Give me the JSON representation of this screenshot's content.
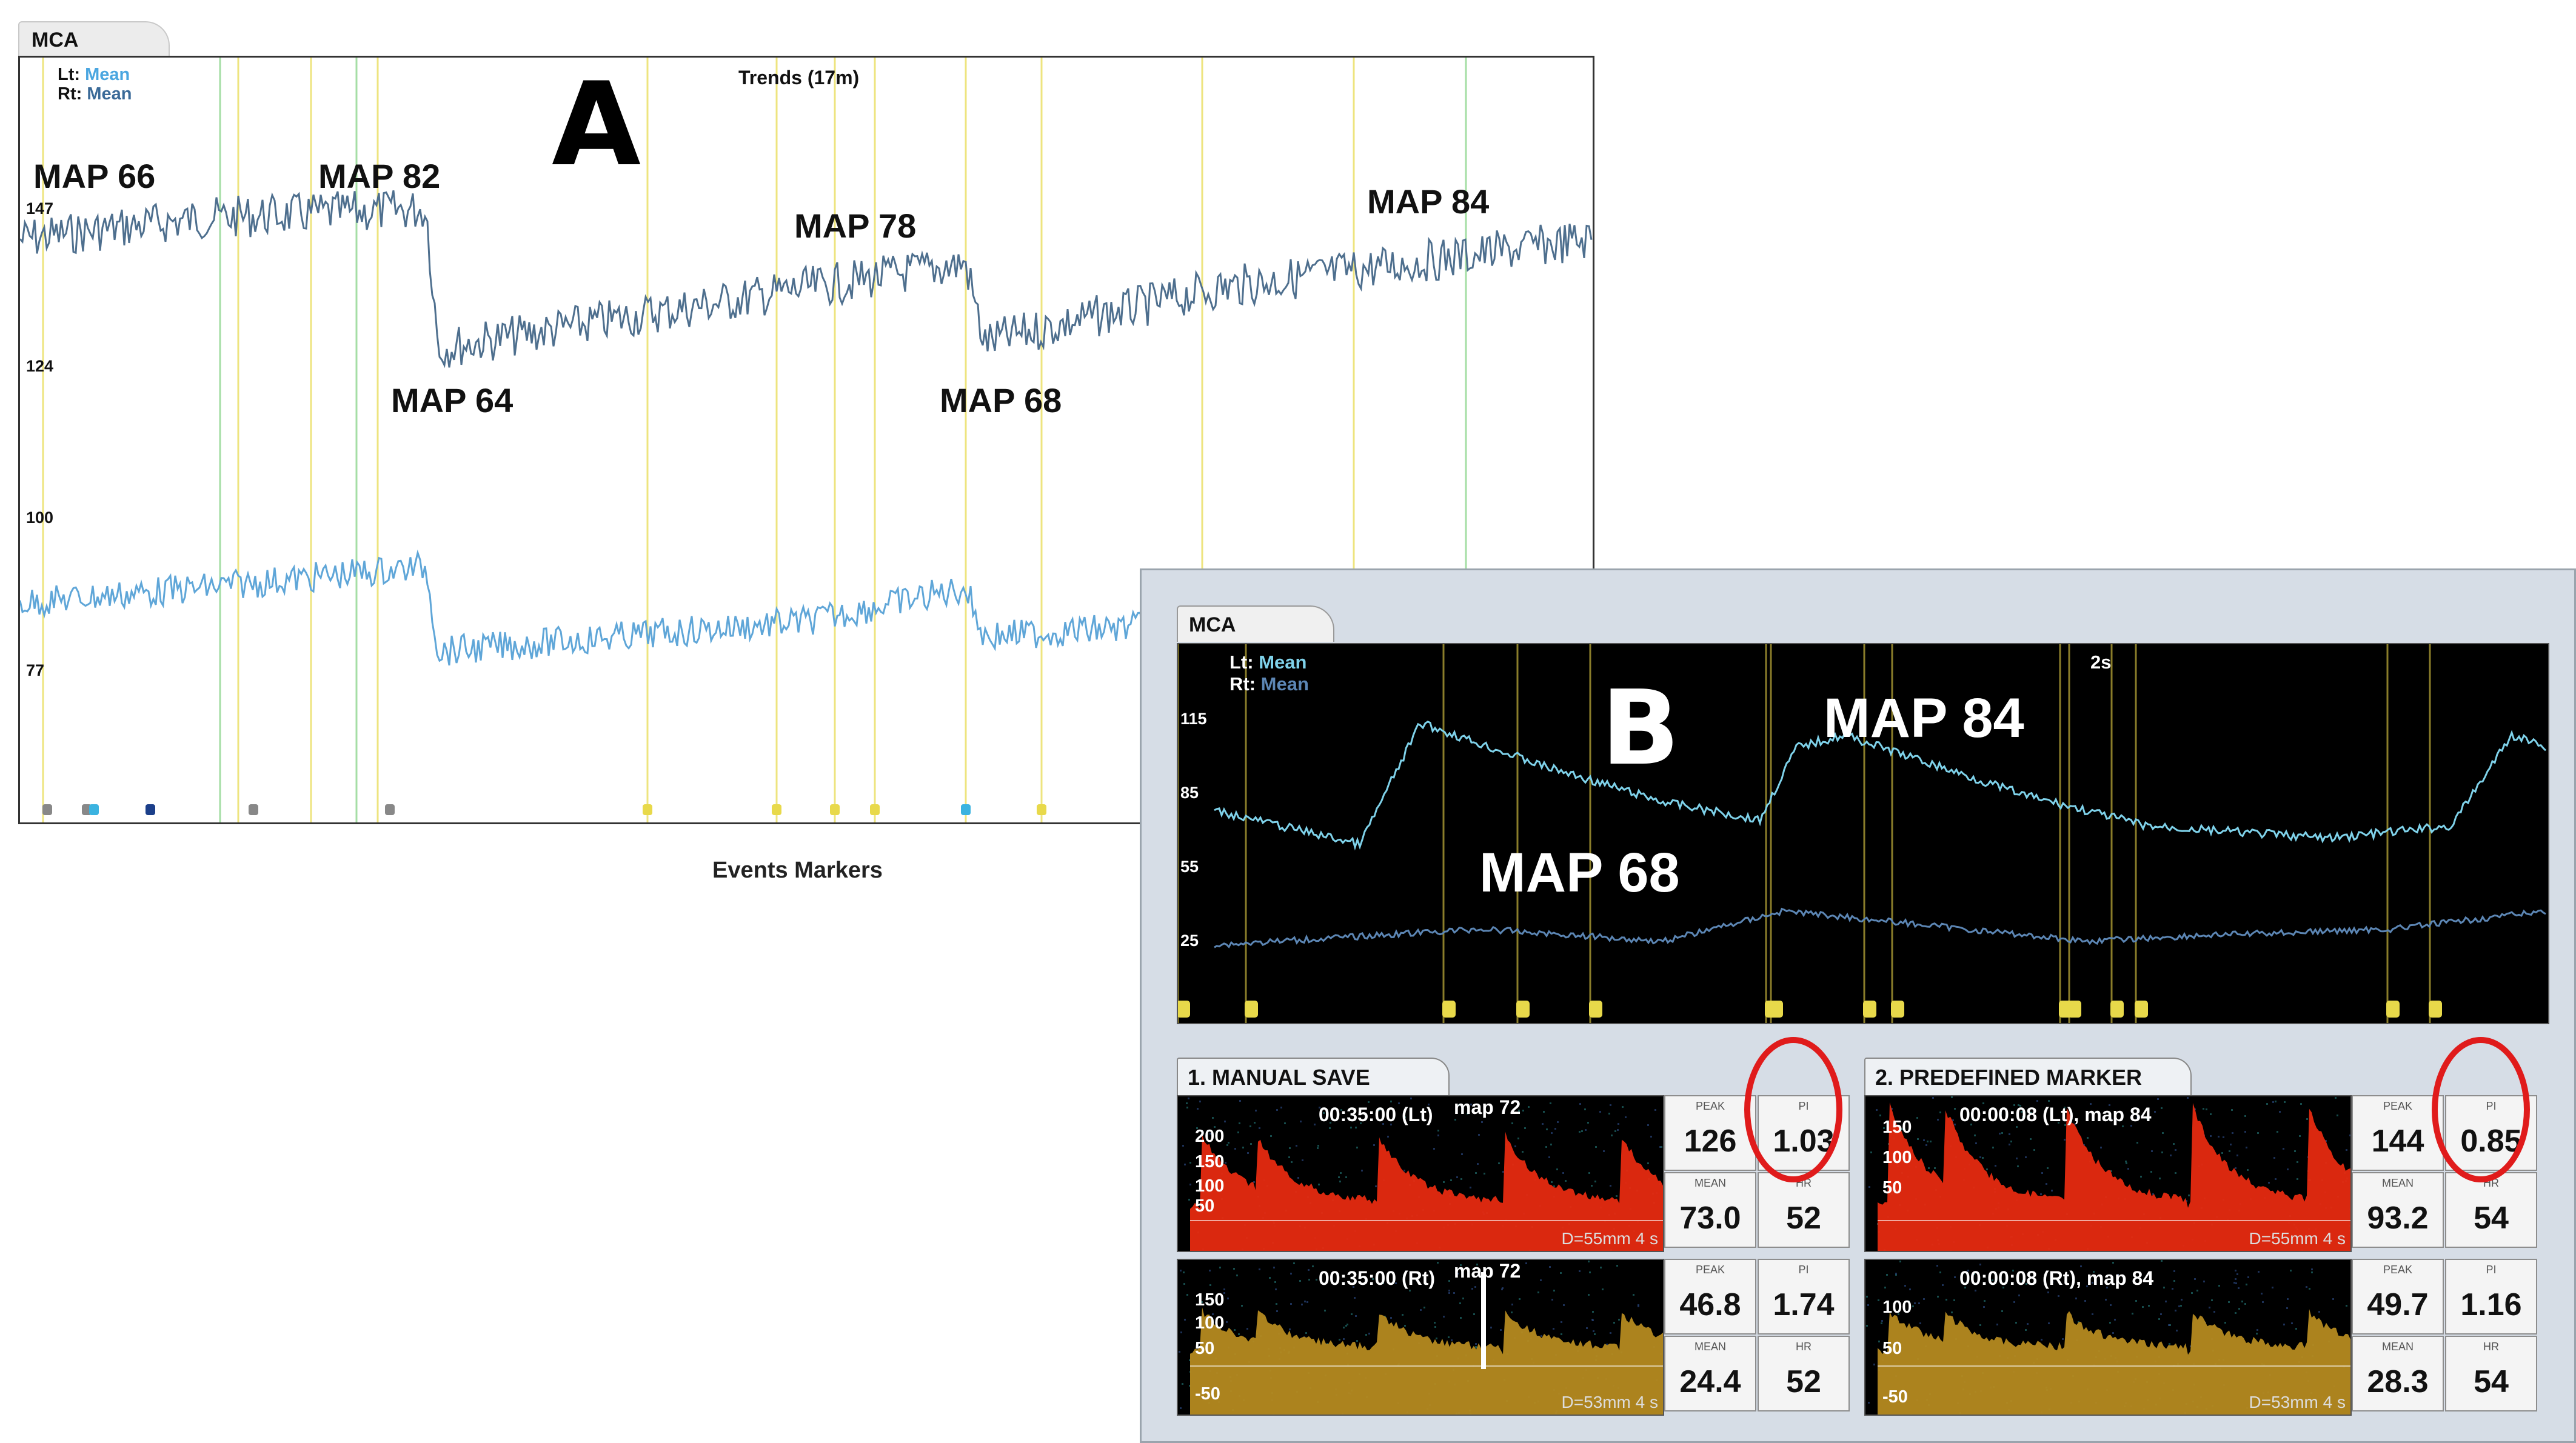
{
  "panel_a": {
    "tab": "MCA",
    "letter": "A",
    "trend_title": "Trends (17m)",
    "legend": {
      "lt_label": "Lt:",
      "lt_value": "Mean",
      "rt_label": "Rt:",
      "rt_value": "Mean"
    },
    "y_ticks": [
      "147",
      "124",
      "100",
      "77"
    ],
    "map_labels": [
      "MAP 66",
      "MAP 82",
      "MAP 64",
      "MAP 78",
      "MAP 68",
      "MAP 84"
    ],
    "events_label": "Events Markers",
    "marker_glyph": "P"
  },
  "panel_b": {
    "tab": "MCA",
    "letter": "B",
    "time_label": "2s",
    "legend": {
      "lt_label": "Lt:",
      "lt_value": "Mean",
      "rt_label": "Rt:",
      "rt_value": "Mean"
    },
    "y_ticks": [
      "115",
      "85",
      "55",
      "25"
    ],
    "map_labels": [
      "MAP 84",
      "MAP 68"
    ],
    "marker_glyph": "P",
    "double_marker_glyph": "PP",
    "sections": [
      {
        "title": "1. MANUAL SAVE",
        "top": {
          "head": "00:35:00 (Lt)",
          "map": "map 72",
          "y_ticks": [
            "200",
            "150",
            "100",
            "50"
          ],
          "foot": "D=55mm  4 s",
          "peak_label": "PEAK",
          "peak": "126",
          "pi_label": "PI",
          "pi": "1.03",
          "mean_label": "MEAN",
          "mean": "73.0",
          "hr_label": "HR",
          "hr": "52"
        },
        "bottom": {
          "head": "00:35:00 (Rt)",
          "map": "map 72",
          "y_ticks": [
            "150",
            "100",
            "50",
            "-50"
          ],
          "foot": "D=53mm  4 s",
          "peak_label": "PEAK",
          "peak": "46.8",
          "pi_label": "PI",
          "pi": "1.74",
          "mean_label": "MEAN",
          "mean": "24.4",
          "hr_label": "HR",
          "hr": "52"
        }
      },
      {
        "title": "2. PREDEFINED MARKER",
        "top": {
          "head": "00:00:08 (Lt),  map 84",
          "map": "",
          "y_ticks": [
            "150",
            "100",
            "50"
          ],
          "foot": "D=55mm  4 s",
          "peak_label": "PEAK",
          "peak": "144",
          "pi_label": "PI",
          "pi": "0.85",
          "mean_label": "MEAN",
          "mean": "93.2",
          "hr_label": "HR",
          "hr": "54"
        },
        "bottom": {
          "head": "00:00:08 (Rt),  map 84",
          "map": "",
          "y_ticks": [
            "100",
            "50",
            "-50"
          ],
          "foot": "D=53mm  4 s",
          "peak_label": "PEAK",
          "peak": "49.7",
          "pi_label": "PI",
          "pi": "1.16",
          "mean_label": "MEAN",
          "mean": "28.3",
          "hr_label": "HR",
          "hr": "54"
        }
      }
    ]
  },
  "colors": {
    "trace_lt": "#7fd2ea",
    "trace_rt": "#5c86b4",
    "trend_top": "#4e6f8e",
    "trend_bottom": "#5fa6d8",
    "yellow_marker": "#e8d94a",
    "green_marker": "#8fd68f",
    "highlight": "#e01b1b"
  }
}
